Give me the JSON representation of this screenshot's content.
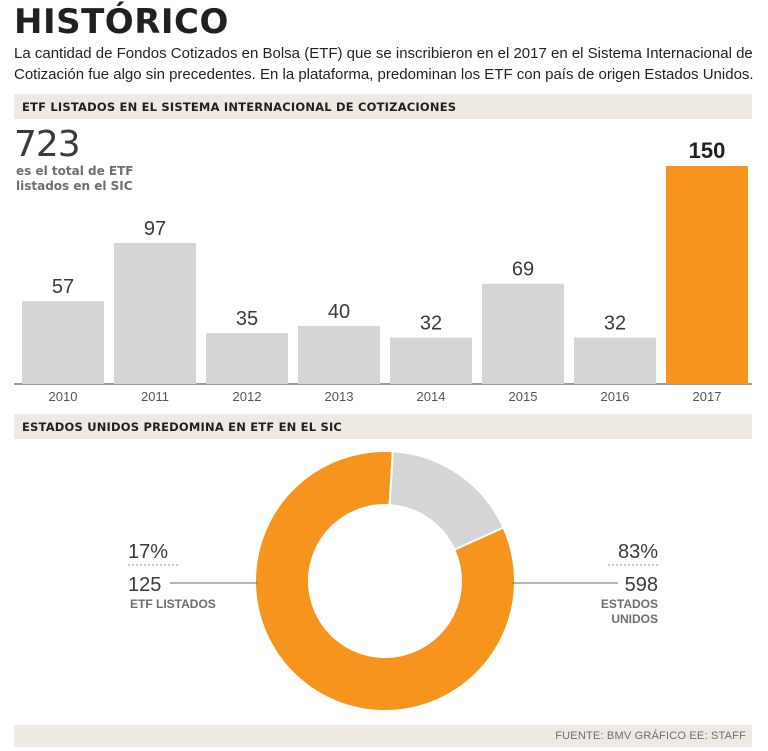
{
  "title": "HISTÓRICO",
  "subtitle": "La cantidad de Fondos Cotizados en Bolsa (ETF) que se inscribieron en el 2017 en el Sistema Internacional de Cotización fue algo sin precedentes. En la plataforma, predominan los ETF con país de origen Estados Unidos.",
  "section1_label": "ETF LISTADOS EN EL SISTEMA INTERNACIONAL DE COTIZACIONES",
  "total": {
    "number": "723",
    "text": "es el total de ETF listados en el SIC"
  },
  "section2_label": "ESTADOS UNIDOS PREDOMINA EN ETF EN EL SIC",
  "source": "FUENTE: BMV GRÁFICO EE: STAFF",
  "colors": {
    "gray": "#d4d5d7",
    "orange": "#f7941d",
    "band": "#efe9e4",
    "text": "#231f20"
  },
  "chart_data": [
    {
      "type": "bar",
      "title": "ETF LISTADOS EN EL SISTEMA INTERNACIONAL DE COTIZACIONES",
      "categories": [
        "2010",
        "2011",
        "2012",
        "2013",
        "2014",
        "2015",
        "2016",
        "2017"
      ],
      "values": [
        57,
        97,
        35,
        40,
        32,
        69,
        32,
        150
      ],
      "highlight": "2017",
      "ylim": [
        0,
        150
      ]
    },
    {
      "type": "pie",
      "title": "ESTADOS UNIDOS PREDOMINA EN ETF EN EL SIC",
      "slices": [
        {
          "name": "ETF LISTADOS",
          "percent": "17%",
          "count": "125",
          "value": 125,
          "color": "#d4d5d7"
        },
        {
          "name": "ESTADOS UNIDOS",
          "percent": "83%",
          "count": "598",
          "value": 598,
          "color": "#f7941d"
        }
      ]
    }
  ]
}
